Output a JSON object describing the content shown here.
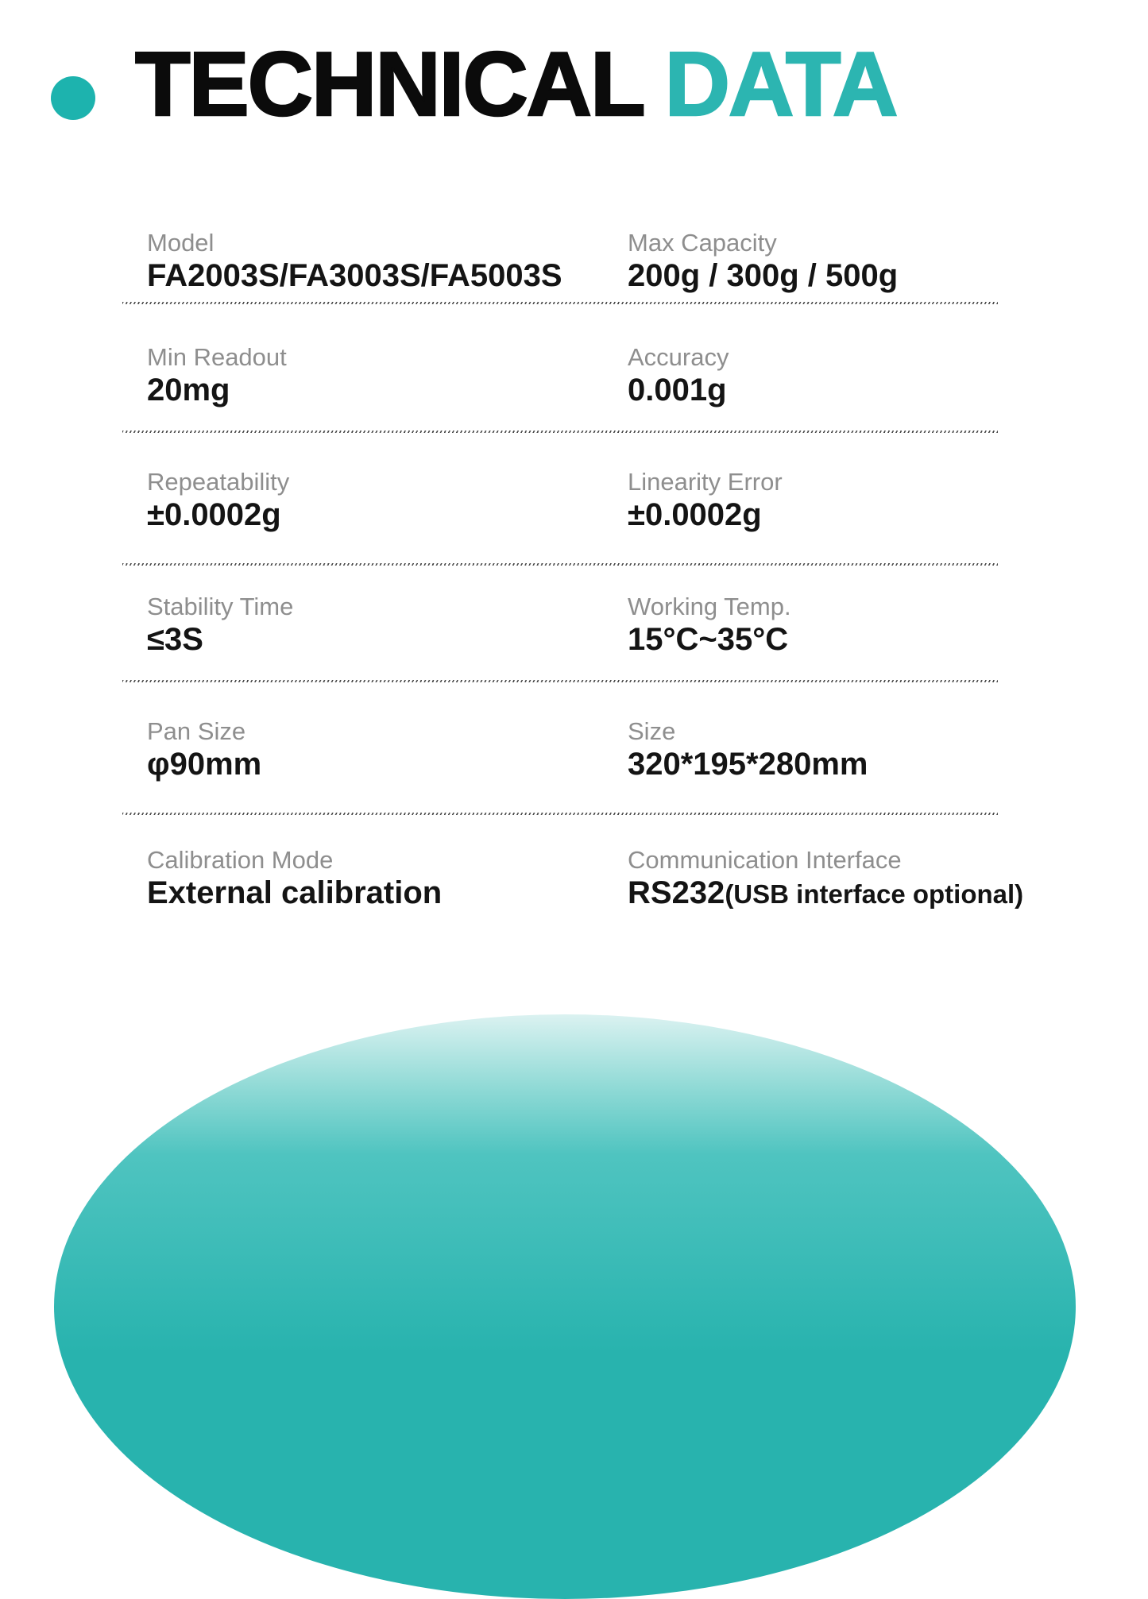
{
  "title": {
    "word_black": "TECHNICAL",
    "word_accent": "DATA"
  },
  "colors": {
    "accent_text": "#2cb5b1",
    "bullet_dot": "#1db3ae",
    "label_gray": "#8e8e8e",
    "value_black": "#141414",
    "divider": "#4a4a4a",
    "dome_gradient_top": "#dbf2f1",
    "dome_gradient_bottom": "#28b3ae"
  },
  "specs": {
    "rows": [
      {
        "left": {
          "label": "Model",
          "value": "FA2003S/FA3003S/FA5003S"
        },
        "right": {
          "label": "Max Capacity",
          "value": "200g / 300g / 500g"
        }
      },
      {
        "left": {
          "label": "Min Readout",
          "value": "20mg"
        },
        "right": {
          "label": "Accuracy",
          "value": "0.001g"
        }
      },
      {
        "left": {
          "label": "Repeatability",
          "value": "±0.0002g"
        },
        "right": {
          "label": "Linearity Error",
          "value": "±0.0002g"
        }
      },
      {
        "left": {
          "label": "Stability Time",
          "value": "≤3S"
        },
        "right": {
          "label": "Working Temp.",
          "value": "15°C~35°C"
        }
      },
      {
        "left": {
          "label": "Pan Size",
          "value": "φ90mm"
        },
        "right": {
          "label": "Size",
          "value": "320*195*280mm"
        }
      },
      {
        "left": {
          "label": "Calibration Mode",
          "value": "External calibration"
        },
        "right": {
          "label": "Communication Interface",
          "value": "RS232",
          "value_suffix": "(USB interface optional)"
        }
      }
    ]
  }
}
